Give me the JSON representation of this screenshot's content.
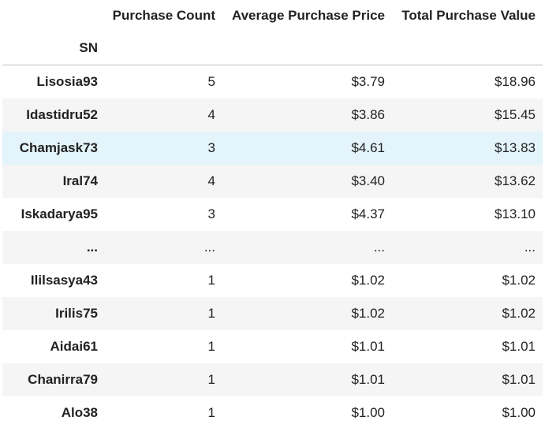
{
  "table": {
    "columns": [
      "Purchase Count",
      "Average Purchase Price",
      "Total Purchase Value"
    ],
    "index_name": "SN",
    "rows": [
      {
        "sn": "Lisosia93",
        "count": "5",
        "avg": "$3.79",
        "total": "$18.96"
      },
      {
        "sn": "Idastidru52",
        "count": "4",
        "avg": "$3.86",
        "total": "$15.45"
      },
      {
        "sn": "Chamjask73",
        "count": "3",
        "avg": "$4.61",
        "total": "$13.83"
      },
      {
        "sn": "Iral74",
        "count": "4",
        "avg": "$3.40",
        "total": "$13.62"
      },
      {
        "sn": "Iskadarya95",
        "count": "3",
        "avg": "$4.37",
        "total": "$13.10"
      },
      {
        "sn": "...",
        "count": "...",
        "avg": "...",
        "total": "..."
      },
      {
        "sn": "Ililsasya43",
        "count": "1",
        "avg": "$1.02",
        "total": "$1.02"
      },
      {
        "sn": "Irilis75",
        "count": "1",
        "avg": "$1.02",
        "total": "$1.02"
      },
      {
        "sn": "Aidai61",
        "count": "1",
        "avg": "$1.01",
        "total": "$1.01"
      },
      {
        "sn": "Chanirra79",
        "count": "1",
        "avg": "$1.01",
        "total": "$1.01"
      },
      {
        "sn": "Alo38",
        "count": "1",
        "avg": "$1.00",
        "total": "$1.00"
      }
    ],
    "colors": {
      "stripe": "#f5f5f5",
      "hover_row": "#e3f4fb",
      "header_rule": "#bdbdbd"
    }
  }
}
